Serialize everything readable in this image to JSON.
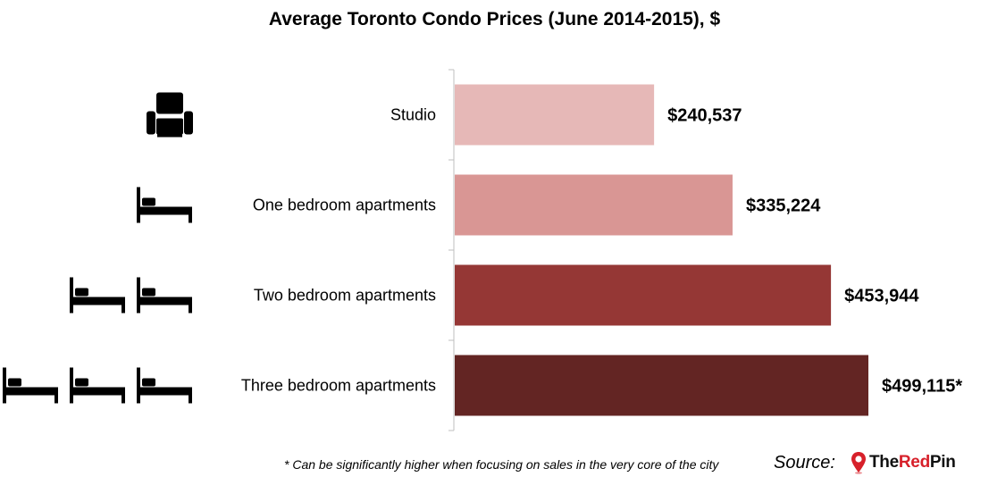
{
  "chart_data": {
    "type": "bar",
    "orientation": "horizontal",
    "title": "Average Toronto Condo Prices (June 2014-2015), $",
    "categories": [
      "Studio",
      "One bedroom apartments",
      "Two bedroom apartments",
      "Three bedroom apartments"
    ],
    "values": [
      240537,
      335224,
      453944,
      499115
    ],
    "value_labels": [
      "$240,537",
      "$335,224",
      "$453,944",
      "$499,115*"
    ],
    "bar_colors": [
      "#e6b8b7",
      "#d99694",
      "#953735",
      "#632523"
    ],
    "icons": [
      {
        "name": "armchair-icon",
        "count": 1
      },
      {
        "name": "bed-icon",
        "count": 1
      },
      {
        "name": "bed-icon",
        "count": 2
      },
      {
        "name": "bed-icon",
        "count": 3
      }
    ],
    "xlim": [
      0,
      500000
    ],
    "grid": false,
    "legend": "none"
  },
  "footnote": "* Can be significantly higher when focusing on sales in the very core of the city",
  "source_label": "Source:",
  "brand": {
    "part1": "The",
    "part2": "Red",
    "part3": "Pin"
  }
}
